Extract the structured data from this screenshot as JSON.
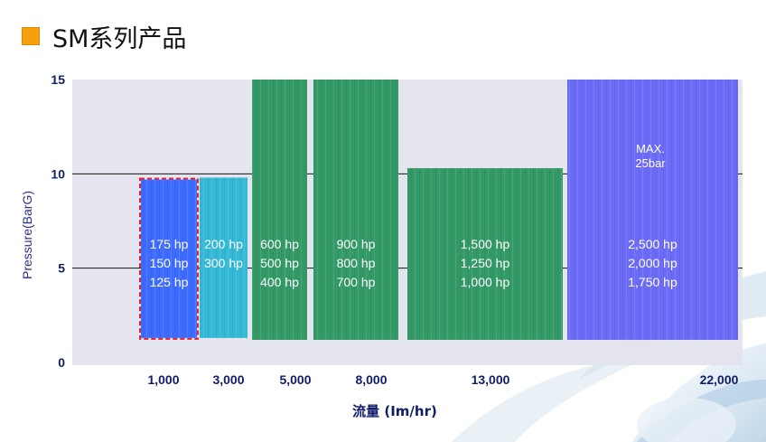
{
  "slide": {
    "title": "SM系列产品",
    "accent_color": "#f5a00f"
  },
  "chart_data": {
    "type": "bar",
    "title": "",
    "xlabel": "流量 (Im/hr)",
    "ylabel": "Pressure(BarG)",
    "ylim": [
      0,
      15
    ],
    "yticks": [
      "0",
      "5",
      "10",
      "15"
    ],
    "x_tick_labels": [
      "1,000",
      "3,000",
      "5,000",
      "8,000",
      "13,000",
      "22,000"
    ],
    "reference_lines": [
      5,
      10
    ],
    "bars": [
      {
        "category": "1,000",
        "y_bottom": 1.3,
        "y_top": 9.7,
        "color": "#3d6bff",
        "highlight": true,
        "labels": [
          "175 hp",
          "150 hp",
          "125 hp"
        ]
      },
      {
        "category": "3,000",
        "y_bottom": 1.3,
        "y_top": 9.8,
        "color": "#33b8d6",
        "highlight": false,
        "labels": [
          "200 hp",
          "300 hp"
        ]
      },
      {
        "category": "5,000",
        "y_bottom": 1.2,
        "y_top": 15,
        "color": "#339966",
        "highlight": false,
        "labels": [
          "600 hp",
          "500 hp",
          "400 hp"
        ]
      },
      {
        "category": "8,000",
        "y_bottom": 1.2,
        "y_top": 15,
        "color": "#339966",
        "highlight": false,
        "labels": [
          "900 hp",
          "800 hp",
          "700 hp"
        ]
      },
      {
        "category": "13,000",
        "y_bottom": 1.2,
        "y_top": 10.3,
        "color": "#339966",
        "highlight": false,
        "labels": [
          "1,500 hp",
          "1,250 hp",
          "1,000 hp"
        ]
      },
      {
        "category": "22,000",
        "y_bottom": 1.2,
        "y_top": 15,
        "color": "#6b6bf7",
        "highlight": false,
        "labels": [
          "2,500 hp",
          "2,000 hp",
          "1,750 hp"
        ],
        "note": [
          "MAX.",
          "25bar"
        ]
      }
    ],
    "plot_background": "#e3e3ee",
    "grid": false
  }
}
